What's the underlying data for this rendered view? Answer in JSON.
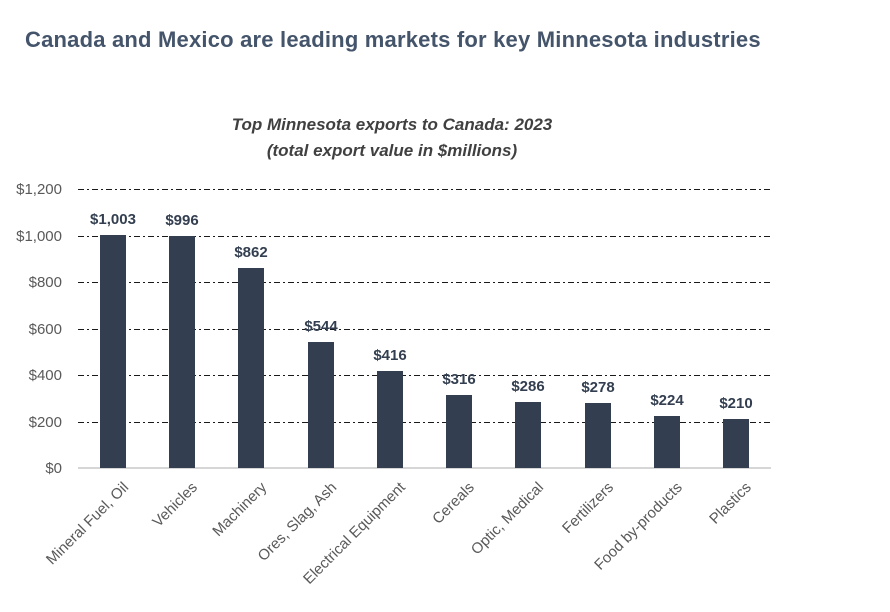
{
  "title": "Canada and Mexico are leading markets for key Minnesota industries",
  "chart_data": {
    "type": "bar",
    "title": "Top Minnesota exports to Canada: 2023",
    "subtitle": "(total export value in $millions)",
    "categories": [
      "Mineral Fuel, Oil",
      "Vehicles",
      "Machinery",
      "Ores, Slag, Ash",
      "Electrical Equipment",
      "Cereals",
      "Optic, Medical",
      "Fertilizers",
      "Food by-products",
      "Plastics"
    ],
    "values": [
      1003,
      996,
      862,
      544,
      416,
      316,
      286,
      278,
      224,
      210
    ],
    "value_labels": [
      "$1,003",
      "$996",
      "$862",
      "$544",
      "$416",
      "$316",
      "$286",
      "$278",
      "$224",
      "$210"
    ],
    "xlabel": "",
    "ylabel": "",
    "ylim": [
      0,
      1200
    ],
    "y_ticks": [
      {
        "value": 0,
        "label": "$0"
      },
      {
        "value": 200,
        "label": "$200"
      },
      {
        "value": 400,
        "label": "$400"
      },
      {
        "value": 600,
        "label": "$600"
      },
      {
        "value": 800,
        "label": "$800"
      },
      {
        "value": 1000,
        "label": "$1,000"
      },
      {
        "value": 1200,
        "label": "$1,200"
      }
    ],
    "grid": "horizontal dash-dot",
    "legend": "none",
    "colors": {
      "background": "#FFFFFF",
      "bar": "#333F50",
      "value_label": "#333F50",
      "axis_label": "#595959",
      "gridline": "#1A1A1A",
      "baseline": "#D6D6D6",
      "title": "#44546A",
      "subtitle": "#404040"
    }
  }
}
